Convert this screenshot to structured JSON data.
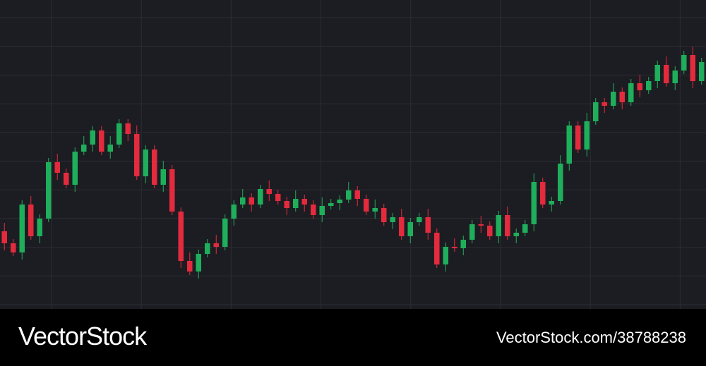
{
  "chart_data": {
    "type": "candlestick",
    "open": [
      110,
      93,
      80,
      148,
      103,
      128,
      208,
      193,
      176,
      223,
      233,
      253,
      223,
      233,
      263,
      248,
      188,
      226,
      176,
      198,
      138,
      68,
      53,
      78,
      93,
      88,
      128,
      148,
      158,
      148,
      170,
      163,
      153,
      143,
      156,
      148,
      133,
      146,
      150,
      155,
      168,
      156,
      138,
      143,
      123,
      130,
      103,
      123,
      130,
      108,
      63,
      88,
      86,
      98,
      120,
      118,
      103,
      133,
      103,
      108,
      120,
      180,
      148,
      153,
      206,
      260,
      226,
      266,
      293,
      288,
      308,
      293,
      320,
      310,
      323,
      346,
      320,
      338,
      360,
      323
    ],
    "high": [
      122,
      99,
      154,
      160,
      134,
      214,
      220,
      199,
      229,
      245,
      259,
      259,
      245,
      269,
      269,
      260,
      232,
      232,
      210,
      204,
      144,
      80,
      84,
      99,
      105,
      134,
      154,
      170,
      164,
      176,
      182,
      169,
      159,
      168,
      162,
      154,
      158,
      156,
      161,
      180,
      174,
      162,
      155,
      149,
      136,
      142,
      129,
      136,
      142,
      114,
      94,
      100,
      104,
      126,
      132,
      124,
      139,
      145,
      114,
      126,
      192,
      186,
      159,
      218,
      266,
      266,
      278,
      299,
      299,
      320,
      314,
      326,
      332,
      329,
      352,
      358,
      344,
      366,
      372,
      356
    ],
    "low": [
      83,
      75,
      70,
      98,
      93,
      123,
      183,
      171,
      166,
      218,
      223,
      218,
      213,
      228,
      238,
      183,
      178,
      171,
      166,
      133,
      58,
      48,
      43,
      73,
      78,
      83,
      118,
      143,
      138,
      143,
      153,
      148,
      133,
      138,
      138,
      128,
      123,
      141,
      140,
      150,
      146,
      133,
      128,
      118,
      113,
      98,
      93,
      118,
      98,
      58,
      53,
      81,
      76,
      93,
      108,
      98,
      93,
      98,
      93,
      103,
      110,
      143,
      138,
      148,
      196,
      221,
      216,
      261,
      278,
      283,
      283,
      288,
      300,
      305,
      313,
      315,
      310,
      333,
      313,
      318
    ],
    "close": [
      93,
      80,
      148,
      103,
      128,
      208,
      193,
      176,
      223,
      233,
      253,
      223,
      233,
      263,
      248,
      188,
      226,
      176,
      198,
      138,
      68,
      53,
      78,
      93,
      88,
      128,
      148,
      158,
      148,
      170,
      163,
      153,
      143,
      156,
      148,
      133,
      146,
      150,
      155,
      168,
      156,
      138,
      143,
      123,
      130,
      103,
      123,
      130,
      108,
      63,
      88,
      86,
      98,
      120,
      118,
      103,
      133,
      103,
      108,
      120,
      180,
      148,
      153,
      206,
      260,
      226,
      266,
      293,
      288,
      308,
      293,
      320,
      310,
      323,
      346,
      320,
      338,
      360,
      323,
      350
    ],
    "up_color": "#1fae5b",
    "down_color": "#e32b3d",
    "ylim": [
      0,
      438
    ],
    "grid": true
  },
  "footer": {
    "brand": "VectorStock",
    "id": "VectorStock.com/38788238"
  }
}
